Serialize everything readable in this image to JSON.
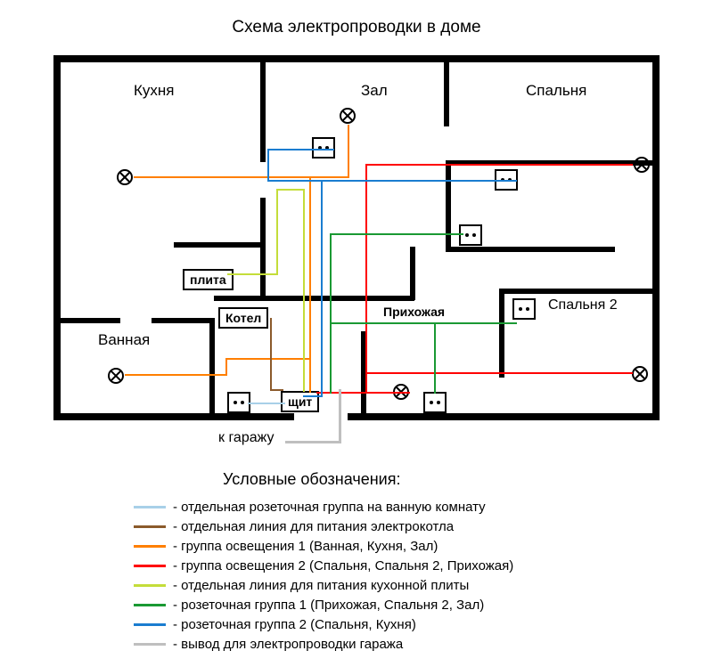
{
  "title": "Схема электропроводки в доме",
  "garage_label": "к гаражу",
  "legend_title": "Условные обозначения:",
  "rooms": {
    "kitchen": "Кухня",
    "hall": "Зал",
    "bedroom1": "Спальня",
    "bathroom": "Ванная",
    "bedroom2": "Спальня 2",
    "corridor": "Прихожая"
  },
  "devices": {
    "stove": "плита",
    "boiler": "Котел",
    "panel": "щит"
  },
  "colors": {
    "lightblue": "#a8d0e8",
    "brown": "#8b5a2b",
    "orange": "#ff7f00",
    "red": "#ff0000",
    "yellowgreen": "#c4dd3a",
    "green": "#1a9933",
    "blue": "#1a7dd0",
    "gray": "#bfbfbf"
  },
  "legend": [
    {
      "color": "lightblue",
      "text": "- отдельная розеточная группа на ванную комнату"
    },
    {
      "color": "brown",
      "text": "- отдельная линия для питания электрокотла"
    },
    {
      "color": "orange",
      "text": "- группа освещения 1 (Ванная, Кухня, Зал)"
    },
    {
      "color": "red",
      "text": "- группа освещения 2 (Спальня, Спальня 2, Прихожая)"
    },
    {
      "color": "yellowgreen",
      "text": "- отдельная линия для питания кухонной плиты"
    },
    {
      "color": "green",
      "text": "- розеточная группа 1 (Прихожая, Спальня 2, Зал)"
    },
    {
      "color": "blue",
      "text": "- розеточная группа 2 (Спальня, Кухня)"
    },
    {
      "color": "gray",
      "text": "- вывод для электропроводки гаража"
    }
  ]
}
